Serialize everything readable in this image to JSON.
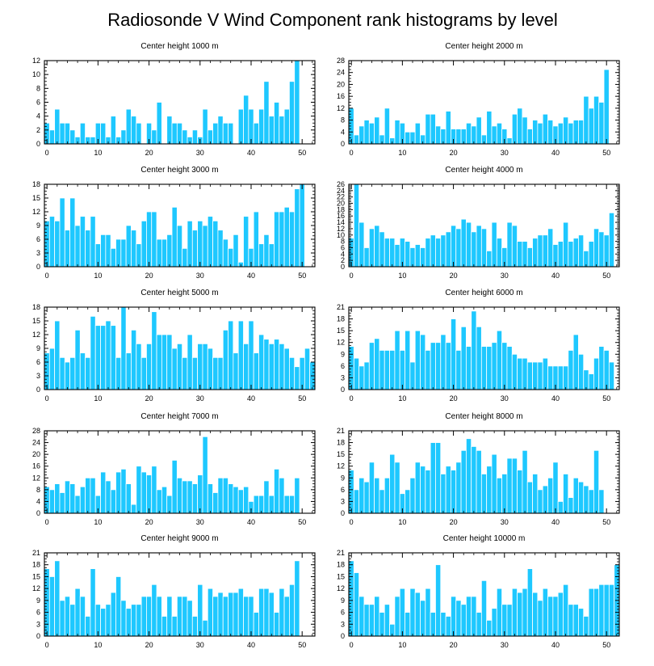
{
  "figure": {
    "title": "Radiosonde V Wind Component rank histograms by level",
    "bar_color": "#1ec8ff",
    "bar_edge_color": "#ffffff"
  },
  "chart_data": [
    {
      "type": "bar",
      "title": "Center height 1000 m",
      "xlim": [
        -0.5,
        52.5
      ],
      "ylim": [
        0,
        12
      ],
      "yticks": [
        0,
        2,
        4,
        6,
        8,
        10,
        12
      ],
      "xticks": [
        0,
        10,
        20,
        30,
        40,
        50
      ],
      "values": [
        3,
        2,
        5,
        3,
        3,
        2,
        1,
        3,
        1,
        1,
        3,
        3,
        1,
        4,
        1,
        2,
        5,
        4,
        3,
        0,
        3,
        2,
        6,
        0,
        4,
        3,
        3,
        2,
        1,
        2,
        1,
        5,
        2,
        3,
        4,
        3,
        3,
        0,
        5,
        7,
        5,
        3,
        5,
        9,
        4,
        6,
        4,
        5,
        9,
        12,
        0,
        0,
        0
      ]
    },
    {
      "type": "bar",
      "title": "Center height 2000 m",
      "xlim": [
        -0.5,
        52.5
      ],
      "ylim": [
        0,
        28
      ],
      "yticks": [
        0,
        4,
        8,
        12,
        16,
        20,
        24,
        28
      ],
      "xticks": [
        0,
        10,
        20,
        30,
        40,
        50
      ],
      "values": [
        12,
        3,
        6,
        8,
        7,
        9,
        3,
        12,
        2,
        8,
        7,
        4,
        4,
        7,
        3,
        10,
        10,
        6,
        5,
        11,
        5,
        5,
        5,
        7,
        6,
        9,
        3,
        11,
        6,
        7,
        5,
        2,
        10,
        12,
        9,
        5,
        8,
        7,
        10,
        8,
        6,
        7,
        9,
        7,
        8,
        8,
        16,
        12,
        16,
        14,
        25,
        0,
        0
      ]
    },
    {
      "type": "bar",
      "title": "Center height 3000 m",
      "xlim": [
        -0.5,
        52.5
      ],
      "ylim": [
        0,
        18
      ],
      "yticks": [
        0,
        3,
        6,
        9,
        12,
        15,
        18
      ],
      "xticks": [
        0,
        10,
        20,
        30,
        40,
        50
      ],
      "values": [
        10,
        11,
        10,
        15,
        8,
        15,
        9,
        11,
        8,
        11,
        5,
        7,
        7,
        4,
        6,
        6,
        9,
        8,
        5,
        10,
        12,
        12,
        6,
        6,
        7,
        13,
        9,
        4,
        10,
        8,
        10,
        9,
        11,
        10,
        8,
        6,
        4,
        7,
        1,
        11,
        4,
        12,
        5,
        7,
        5,
        12,
        12,
        13,
        12,
        17,
        18,
        0,
        0
      ]
    },
    {
      "type": "bar",
      "title": "Center height 4000 m",
      "xlim": [
        -0.5,
        52.5
      ],
      "ylim": [
        0,
        26
      ],
      "yticks": [
        0,
        2,
        4,
        6,
        8,
        10,
        12,
        14,
        16,
        18,
        20,
        22,
        24,
        26
      ],
      "xticks": [
        0,
        10,
        20,
        30,
        40,
        50
      ],
      "values": [
        9,
        26,
        14,
        6,
        12,
        13,
        11,
        9,
        9,
        7,
        9,
        8,
        6,
        7,
        6,
        9,
        10,
        9,
        10,
        11,
        13,
        12,
        15,
        14,
        11,
        13,
        12,
        5,
        14,
        9,
        6,
        14,
        13,
        8,
        8,
        6,
        9,
        10,
        10,
        12,
        7,
        8,
        14,
        8,
        9,
        10,
        5,
        8,
        12,
        11,
        10,
        17,
        0
      ]
    },
    {
      "type": "bar",
      "title": "Center height 5000 m",
      "xlim": [
        -0.5,
        52.5
      ],
      "ylim": [
        0,
        18
      ],
      "yticks": [
        0,
        3,
        6,
        9,
        12,
        15,
        18
      ],
      "xticks": [
        0,
        10,
        20,
        30,
        40,
        50
      ],
      "values": [
        8,
        9,
        15,
        7,
        6,
        7,
        13,
        8,
        7,
        16,
        14,
        14,
        15,
        14,
        7,
        18,
        8,
        13,
        10,
        7,
        10,
        17,
        12,
        12,
        12,
        9,
        10,
        7,
        12,
        7,
        10,
        10,
        9,
        7,
        7,
        13,
        15,
        8,
        15,
        10,
        15,
        8,
        12,
        11,
        10,
        11,
        10,
        9,
        7,
        5,
        7,
        9,
        6
      ]
    },
    {
      "type": "bar",
      "title": "Center height 6000 m",
      "xlim": [
        -0.5,
        52.5
      ],
      "ylim": [
        0,
        21
      ],
      "yticks": [
        0,
        3,
        6,
        9,
        12,
        15,
        18,
        21
      ],
      "xticks": [
        0,
        10,
        20,
        30,
        40,
        50
      ],
      "values": [
        11,
        8,
        6,
        7,
        12,
        13,
        10,
        10,
        10,
        15,
        10,
        15,
        7,
        15,
        14,
        10,
        12,
        12,
        14,
        12,
        18,
        10,
        16,
        11,
        20,
        16,
        11,
        11,
        12,
        15,
        12,
        11,
        9,
        8,
        8,
        7,
        7,
        7,
        8,
        6,
        6,
        6,
        6,
        10,
        14,
        9,
        5,
        4,
        8,
        11,
        10,
        7,
        0
      ]
    },
    {
      "type": "bar",
      "title": "Center height 7000 m",
      "xlim": [
        -0.5,
        52.5
      ],
      "ylim": [
        0,
        28
      ],
      "yticks": [
        0,
        4,
        8,
        12,
        16,
        20,
        24,
        28
      ],
      "xticks": [
        0,
        10,
        20,
        30,
        40,
        50
      ],
      "values": [
        9,
        8,
        10,
        7,
        11,
        10,
        6,
        9,
        12,
        12,
        6,
        14,
        11,
        8,
        14,
        15,
        10,
        3,
        16,
        14,
        13,
        16,
        8,
        9,
        6,
        18,
        12,
        11,
        11,
        10,
        13,
        26,
        10,
        7,
        12,
        12,
        10,
        9,
        8,
        9,
        4,
        6,
        6,
        11,
        6,
        15,
        12,
        6,
        6,
        12,
        0,
        0,
        0
      ]
    },
    {
      "type": "bar",
      "title": "Center height 8000 m",
      "xlim": [
        -0.5,
        52.5
      ],
      "ylim": [
        0,
        21
      ],
      "yticks": [
        0,
        3,
        6,
        9,
        12,
        15,
        18,
        21
      ],
      "xticks": [
        0,
        10,
        20,
        30,
        40,
        50
      ],
      "values": [
        11,
        6,
        9,
        8,
        13,
        9,
        6,
        9,
        15,
        13,
        5,
        6,
        9,
        13,
        12,
        11,
        18,
        18,
        10,
        12,
        11,
        13,
        16,
        19,
        17,
        16,
        10,
        12,
        15,
        9,
        10,
        14,
        14,
        11,
        16,
        8,
        10,
        6,
        7,
        9,
        13,
        3,
        10,
        4,
        9,
        8,
        7,
        6,
        16,
        6,
        0,
        0,
        0
      ]
    },
    {
      "type": "bar",
      "title": "Center height 9000 m",
      "xlim": [
        -0.5,
        52.5
      ],
      "ylim": [
        0,
        21
      ],
      "yticks": [
        0,
        3,
        6,
        9,
        12,
        15,
        18,
        21
      ],
      "xticks": [
        0,
        10,
        20,
        30,
        40,
        50
      ],
      "values": [
        17,
        15,
        19,
        9,
        10,
        8,
        12,
        10,
        5,
        17,
        8,
        7,
        8,
        11,
        15,
        9,
        7,
        8,
        8,
        10,
        10,
        13,
        10,
        5,
        10,
        5,
        10,
        10,
        9,
        5,
        13,
        4,
        12,
        10,
        11,
        10,
        11,
        11,
        12,
        10,
        10,
        6,
        12,
        12,
        11,
        6,
        12,
        10,
        13,
        19,
        0,
        0,
        0
      ]
    },
    {
      "type": "bar",
      "title": "Center height 10000 m",
      "xlim": [
        -0.5,
        52.5
      ],
      "ylim": [
        0,
        21
      ],
      "yticks": [
        0,
        3,
        6,
        9,
        12,
        15,
        18,
        21
      ],
      "xticks": [
        0,
        10,
        20,
        30,
        40,
        50
      ],
      "values": [
        19,
        16,
        10,
        8,
        8,
        10,
        6,
        8,
        3,
        10,
        12,
        6,
        12,
        11,
        9,
        12,
        6,
        18,
        6,
        5,
        10,
        9,
        8,
        10,
        10,
        6,
        14,
        4,
        7,
        12,
        8,
        8,
        12,
        11,
        12,
        17,
        11,
        9,
        12,
        10,
        10,
        11,
        13,
        8,
        8,
        7,
        5,
        12,
        12,
        13,
        13,
        13,
        18
      ]
    }
  ]
}
